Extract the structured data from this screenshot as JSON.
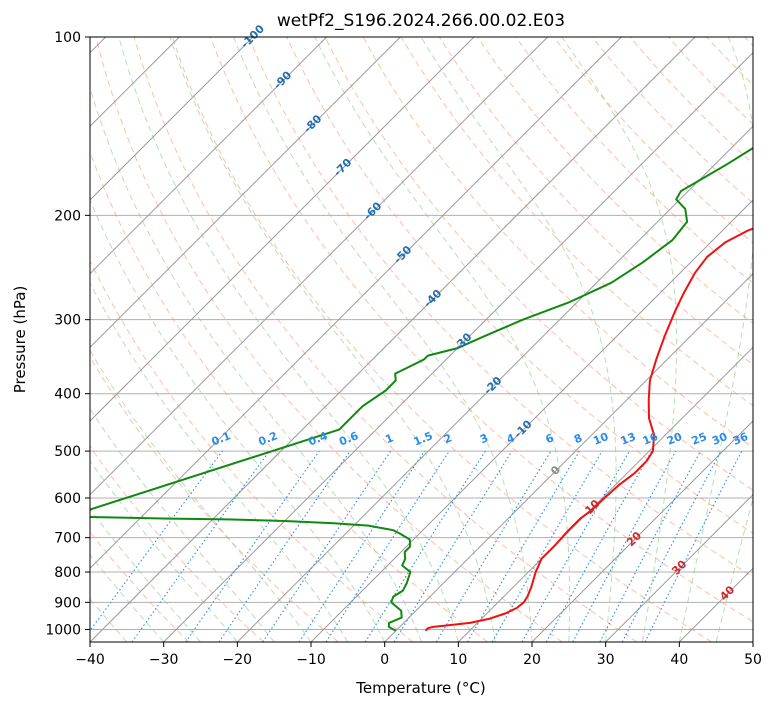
{
  "chart_data": {
    "type": "line",
    "subtype": "skew-T log-p diagram",
    "title": "wetPf2_S196.2024.266.00.02.E03",
    "xlabel": "Temperature (°C)",
    "ylabel": "Pressure (hPa)",
    "xlim": [
      -40,
      50
    ],
    "ylim": [
      1050,
      100
    ],
    "y_scale": "log",
    "grid": true,
    "x_ticks": [
      "−40",
      "−30",
      "−20",
      "−10",
      "0",
      "10",
      "20",
      "30",
      "40",
      "50"
    ],
    "y_ticks": [
      "100",
      "200",
      "300",
      "400",
      "500",
      "600",
      "700",
      "800",
      "900",
      "1000"
    ],
    "colors": {
      "temperature": "#ee1111",
      "dewpoint": "#118811",
      "isotherm": "#9a9a9a",
      "dry_adiabat": "#fa8a6a",
      "moist_adiabat": "#88c888",
      "mixing_ratio": "#2b8ce6",
      "isotherm_label": "#1f6fb0",
      "label_red": "#d62728"
    },
    "series": [
      {
        "name": "",
        "points": [
          [
            1005,
            4.0
          ],
          [
            995,
            4.0
          ],
          [
            990,
            4.5
          ],
          [
            985,
            6.0
          ],
          [
            975,
            9.0
          ],
          [
            960,
            11.0
          ],
          [
            940,
            12.5
          ],
          [
            920,
            13.3
          ],
          [
            900,
            13.5
          ],
          [
            880,
            13.2
          ],
          [
            850,
            12.5
          ],
          [
            800,
            11.0
          ],
          [
            760,
            10.0
          ],
          [
            720,
            10.0
          ],
          [
            680,
            9.8
          ],
          [
            650,
            9.8
          ],
          [
            630,
            10.2
          ],
          [
            600,
            10.3
          ],
          [
            570,
            10.5
          ],
          [
            545,
            11.0
          ],
          [
            520,
            11.0
          ],
          [
            500,
            10.5
          ],
          [
            470,
            8.5
          ],
          [
            440,
            5.5
          ],
          [
            410,
            3.0
          ],
          [
            380,
            0.5
          ],
          [
            350,
            -1.5
          ],
          [
            320,
            -3.5
          ],
          [
            290,
            -5.5
          ],
          [
            270,
            -6.8
          ],
          [
            250,
            -8.0
          ],
          [
            235,
            -8.5
          ],
          [
            222,
            -8.0
          ],
          [
            212,
            -6.5
          ],
          [
            204,
            -4.0
          ],
          [
            195,
            -1.0
          ],
          [
            185,
            0.5
          ],
          [
            175,
            1.5
          ],
          [
            165,
            1.5
          ],
          [
            155,
            1.5
          ],
          [
            145,
            1.5
          ],
          [
            135,
            2.5
          ],
          [
            125,
            4.0
          ],
          [
            115,
            5.5
          ],
          [
            105,
            6.5
          ],
          [
            100,
            7.0
          ]
        ]
      },
      {
        "name": "",
        "points": [
          [
            1005,
            0.0
          ],
          [
            990,
            -1.5
          ],
          [
            975,
            -2.0
          ],
          [
            955,
            -1.0
          ],
          [
            930,
            -2.0
          ],
          [
            900,
            -4.5
          ],
          [
            880,
            -5.0
          ],
          [
            860,
            -4.5
          ],
          [
            835,
            -5.0
          ],
          [
            800,
            -6.0
          ],
          [
            780,
            -8.0
          ],
          [
            760,
            -8.5
          ],
          [
            740,
            -9.5
          ],
          [
            725,
            -9.5
          ],
          [
            705,
            -10.5
          ],
          [
            690,
            -12.5
          ],
          [
            680,
            -14.0
          ],
          [
            668,
            -18.0
          ],
          [
            662,
            -23.0
          ],
          [
            656,
            -30.0
          ],
          [
            652,
            -38.0
          ],
          [
            650,
            -46.0
          ],
          [
            645,
            -60.0
          ],
          [
            460,
            -35.0
          ],
          [
            420,
            -35.0
          ],
          [
            395,
            -34.0
          ],
          [
            380,
            -34.0
          ],
          [
            370,
            -35.0
          ],
          [
            365,
            -34.5
          ],
          [
            355,
            -33.5
          ],
          [
            350,
            -33.0
          ],
          [
            345,
            -33.0
          ],
          [
            335,
            -30.0
          ],
          [
            320,
            -28.0
          ],
          [
            300,
            -25.0
          ],
          [
            280,
            -21.0
          ],
          [
            260,
            -18.0
          ],
          [
            240,
            -16.5
          ],
          [
            220,
            -15.5
          ],
          [
            205,
            -16.0
          ],
          [
            195,
            -18.0
          ],
          [
            188,
            -20.5
          ],
          [
            182,
            -21.0
          ],
          [
            175,
            -20.0
          ],
          [
            165,
            -18.5
          ],
          [
            150,
            -16.5
          ],
          [
            140,
            -15.5
          ],
          [
            130,
            -14.0
          ],
          [
            120,
            -12.5
          ],
          [
            110,
            -11.0
          ],
          [
            100,
            -9.0
          ]
        ]
      }
    ],
    "isotherm_labels": [
      {
        "t": -100,
        "text": "-100"
      },
      {
        "t": -90,
        "text": "-90"
      },
      {
        "t": -80,
        "text": "-80"
      },
      {
        "t": -70,
        "text": "-70"
      },
      {
        "t": -60,
        "text": "-60"
      },
      {
        "t": -50,
        "text": "-50"
      },
      {
        "t": -40,
        "text": "-40"
      },
      {
        "t": -30,
        "text": "-30"
      },
      {
        "t": -20,
        "text": "-20"
      },
      {
        "t": -10,
        "text": "-10"
      },
      {
        "t": 0,
        "text": "0"
      },
      {
        "t": 10,
        "text": "10"
      },
      {
        "t": 20,
        "text": "20"
      },
      {
        "t": 30,
        "text": "30"
      },
      {
        "t": 40,
        "text": "40"
      }
    ],
    "mixing_ratio_lines_gkg": [
      0.1,
      0.2,
      0.4,
      0.6,
      1,
      1.5,
      2,
      3,
      4,
      6,
      8,
      10,
      13,
      16,
      20,
      25,
      30,
      36
    ]
  }
}
